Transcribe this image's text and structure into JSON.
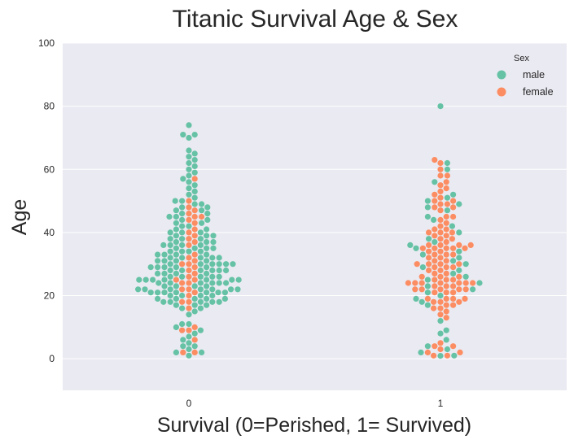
{
  "chart_data": {
    "type": "scatter",
    "subtype": "swarm",
    "title": "Titanic Survival Age & Sex",
    "xlabel": "Survival (0=Perished, 1= Survived)",
    "ylabel": "Age",
    "categories": [
      "0",
      "1"
    ],
    "ylim": [
      -10,
      100
    ],
    "yticks": [
      "0",
      "20",
      "40",
      "60",
      "80",
      "100"
    ],
    "grid": true,
    "legend": {
      "title": "Sex",
      "placement": "top-right",
      "entries": [
        "male",
        "female"
      ]
    },
    "colors": {
      "male": "#66c2a5",
      "female": "#fc8d62",
      "background": "#eaeaf2",
      "grid": "#ffffff"
    },
    "series": [
      {
        "name": "male",
        "points": [
          {
            "x": "0",
            "ages": [
              1,
              2,
              2,
              3,
              4,
              4,
              5,
              6,
              7,
              8,
              9,
              10,
              11,
              11,
              14,
              15,
              16,
              16,
              17,
              17,
              17,
              18,
              18,
              18,
              18,
              18,
              19,
              19,
              19,
              19,
              19,
              20,
              20,
              20,
              20,
              21,
              21,
              21,
              21,
              21,
              21,
              21,
              22,
              22,
              22,
              22,
              22,
              22,
              22,
              23,
              23,
              23,
              23,
              24,
              24,
              24,
              24,
              24,
              24,
              25,
              25,
              25,
              25,
              25,
              25,
              25,
              26,
              26,
              26,
              26,
              26,
              27,
              27,
              27,
              27,
              28,
              28,
              28,
              28,
              28,
              28,
              29,
              29,
              29,
              29,
              29,
              30,
              30,
              30,
              30,
              30,
              30,
              31,
              31,
              31,
              31,
              32,
              32,
              32,
              32,
              32,
              33,
              33,
              33,
              33,
              34,
              34,
              34,
              34,
              35,
              35,
              35,
              35,
              36,
              36,
              36,
              36,
              37,
              37,
              37,
              38,
              38,
              38,
              39,
              39,
              39,
              40,
              40,
              40,
              41,
              41,
              42,
              42,
              43,
              43,
              44,
              44,
              45,
              45,
              46,
              46,
              47,
              47,
              48,
              48,
              49,
              49,
              50,
              50,
              51,
              52,
              53,
              54,
              55,
              56,
              57,
              58,
              59,
              60,
              61,
              62,
              63,
              64,
              65,
              66,
              70,
              71,
              71,
              74
            ]
          },
          {
            "x": "1",
            "ages": [
              0.92,
              1,
              2,
              3,
              4,
              6,
              8,
              9,
              12,
              17,
              18,
              19,
              20,
              21,
              22,
              23,
              24,
              25,
              26,
              27,
              28,
              29,
              30,
              31,
              32,
              33,
              34,
              35,
              36,
              37,
              38,
              40,
              42,
              44,
              45,
              47,
              48,
              49,
              50,
              51,
              52,
              56,
              60,
              62,
              80
            ]
          }
        ]
      },
      {
        "name": "female",
        "points": [
          {
            "x": "0",
            "ages": [
              2,
              2,
              6,
              9,
              9,
              10,
              16,
              18,
              18,
              20,
              21,
              22,
              22,
              24,
              24,
              25,
              25,
              26,
              27,
              28,
              29,
              30,
              30,
              31,
              32,
              33,
              36,
              37,
              38,
              39,
              40,
              41,
              43,
              44,
              45,
              45,
              46,
              47,
              48,
              50,
              57
            ]
          },
          {
            "x": "1",
            "ages": [
              1,
              1,
              2,
              2,
              3,
              4,
              4,
              5,
              13,
              14,
              15,
              16,
              16,
              17,
              17,
              18,
              18,
              18,
              19,
              19,
              19,
              19,
              21,
              21,
              21,
              22,
              22,
              22,
              22,
              22,
              23,
              23,
              23,
              24,
              24,
              24,
              24,
              24,
              24,
              24,
              25,
              25,
              25,
              26,
              26,
              26,
              27,
              27,
              28,
              28,
              29,
              29,
              29,
              30,
              30,
              30,
              30,
              31,
              31,
              32,
              32,
              33,
              33,
              33,
              34,
              34,
              35,
              35,
              35,
              35,
              35,
              36,
              36,
              36,
              36,
              37,
              38,
              38,
              39,
              39,
              40,
              40,
              40,
              41,
              41,
              42,
              43,
              44,
              45,
              45,
              47,
              48,
              48,
              49,
              49,
              50,
              50,
              51,
              52,
              53,
              54,
              55,
              56,
              58,
              58,
              60,
              62,
              63
            ]
          }
        ]
      }
    ]
  }
}
